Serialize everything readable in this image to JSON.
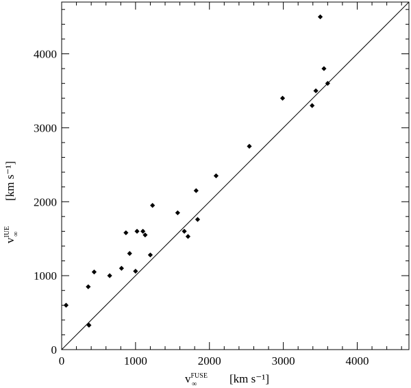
{
  "chart_data": {
    "type": "scatter",
    "xlabel": {
      "main": "v",
      "sup": "FUSE",
      "sub": "∞",
      "units": "[km s⁻¹]"
    },
    "ylabel": {
      "main": "v",
      "sup": "IUE",
      "sub": "∞",
      "units": "[km s⁻¹]"
    },
    "xlim": [
      0,
      4700
    ],
    "ylim": [
      0,
      4700
    ],
    "x_ticks": [
      0,
      1000,
      2000,
      3000,
      4000
    ],
    "y_ticks": [
      0,
      1000,
      2000,
      3000,
      4000
    ],
    "x_tick_labels": [
      "0",
      "1000",
      "2000",
      "3000",
      "4000"
    ],
    "y_tick_labels": [
      "0",
      "1000",
      "2000",
      "3000",
      "4000"
    ],
    "minor_step": 200,
    "reference_line": {
      "from": [
        0,
        0
      ],
      "to": [
        4700,
        4700
      ]
    },
    "grid": false,
    "points": [
      [
        60,
        600
      ],
      [
        360,
        850
      ],
      [
        370,
        330
      ],
      [
        440,
        1050
      ],
      [
        650,
        1000
      ],
      [
        810,
        1100
      ],
      [
        870,
        1580
      ],
      [
        920,
        1300
      ],
      [
        1000,
        1060
      ],
      [
        1020,
        1600
      ],
      [
        1100,
        1600
      ],
      [
        1130,
        1550
      ],
      [
        1200,
        1280
      ],
      [
        1230,
        1950
      ],
      [
        1570,
        1850
      ],
      [
        1660,
        1600
      ],
      [
        1710,
        1530
      ],
      [
        1820,
        2150
      ],
      [
        1840,
        1760
      ],
      [
        2090,
        2350
      ],
      [
        2540,
        2750
      ],
      [
        2990,
        3400
      ],
      [
        3390,
        3300
      ],
      [
        3440,
        3500
      ],
      [
        3500,
        4500
      ],
      [
        3550,
        3800
      ],
      [
        3600,
        3600
      ]
    ]
  }
}
